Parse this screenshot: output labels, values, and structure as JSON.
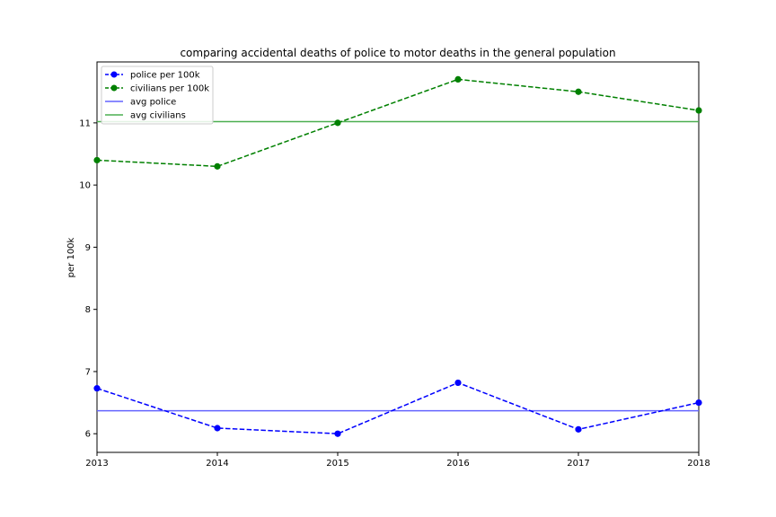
{
  "chart_data": {
    "type": "line",
    "title": "comparing accidental deaths of police to motor deaths in the general population",
    "xlabel": "",
    "ylabel": "per 100k",
    "x": [
      2013,
      2014,
      2015,
      2016,
      2017,
      2018
    ],
    "xlim": [
      2013,
      2018
    ],
    "ylim": [
      5.7,
      11.98
    ],
    "y_ticks": [
      6,
      7,
      8,
      9,
      10,
      11
    ],
    "grid": false,
    "legend_position": "upper left",
    "series": [
      {
        "name": "police per 100k",
        "values": [
          6.73,
          6.09,
          6.0,
          6.82,
          6.07,
          6.5
        ],
        "color": "#0000ff",
        "style": "dashed",
        "marker": "circle"
      },
      {
        "name": "civilians per 100k",
        "values": [
          10.4,
          10.3,
          11.0,
          11.7,
          11.5,
          11.2
        ],
        "color": "#008000",
        "style": "dashed",
        "marker": "circle"
      }
    ],
    "reference_lines": [
      {
        "name": "avg police",
        "value": 6.37,
        "color": "#6464ff",
        "style": "solid"
      },
      {
        "name": "avg civilians",
        "value": 11.02,
        "color": "#4caf50",
        "style": "solid"
      }
    ]
  }
}
